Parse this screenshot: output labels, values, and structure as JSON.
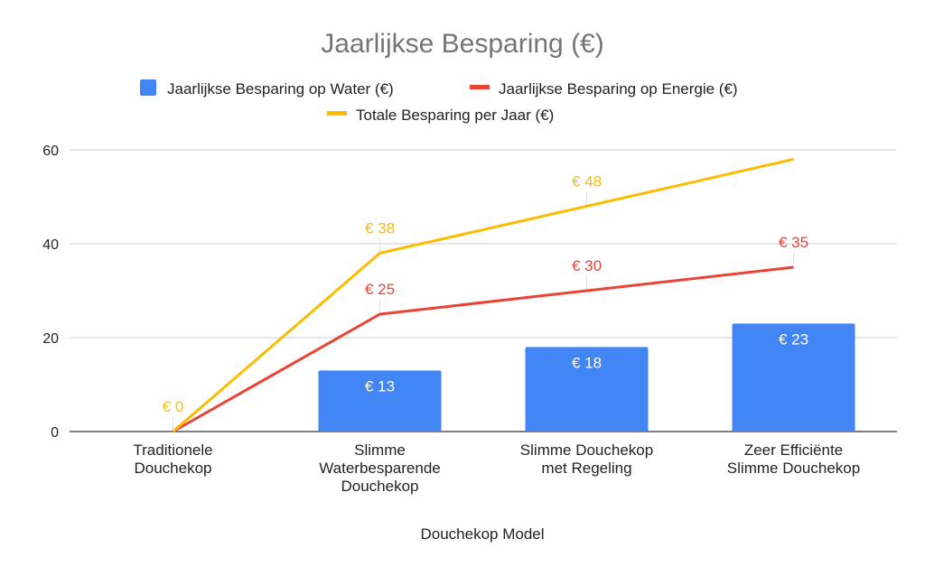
{
  "chart_data": {
    "type": "bar",
    "title": "Jaarlijkse Besparing (€)",
    "xlabel": "Douchekop Model",
    "ylabel": "",
    "ylim": [
      0,
      60
    ],
    "yticks": [
      0,
      20,
      40,
      60
    ],
    "grid": true,
    "legend_position": "top",
    "categories": [
      [
        "Traditionele",
        "Douchekop"
      ],
      [
        "Slimme",
        "Waterbesparende",
        "Douchekop"
      ],
      [
        "Slimme Douchekop",
        "met Regeling"
      ],
      [
        "Zeer Efficiënte",
        "Slimme Douchekop"
      ]
    ],
    "series": [
      {
        "name": "Jaarlijkse Besparing op Water (€)",
        "kind": "bar",
        "color": "#4285F4",
        "values": [
          0,
          13,
          18,
          23
        ],
        "labels": [
          "€ 0",
          "€ 13",
          "€ 18",
          "€ 23"
        ]
      },
      {
        "name": "Jaarlijkse Besparing op Energie (€)",
        "kind": "line",
        "color": "#EA4335",
        "values": [
          0,
          25,
          30,
          35
        ],
        "labels": [
          "",
          "€ 25",
          "€ 30",
          "€ 35"
        ]
      },
      {
        "name": "Totale Besparing per Jaar (€)",
        "kind": "line",
        "color": "#FBBC04",
        "values": [
          0,
          38,
          48,
          58
        ],
        "labels": [
          "€ 0",
          "€ 38",
          "€ 48",
          ""
        ]
      }
    ]
  }
}
